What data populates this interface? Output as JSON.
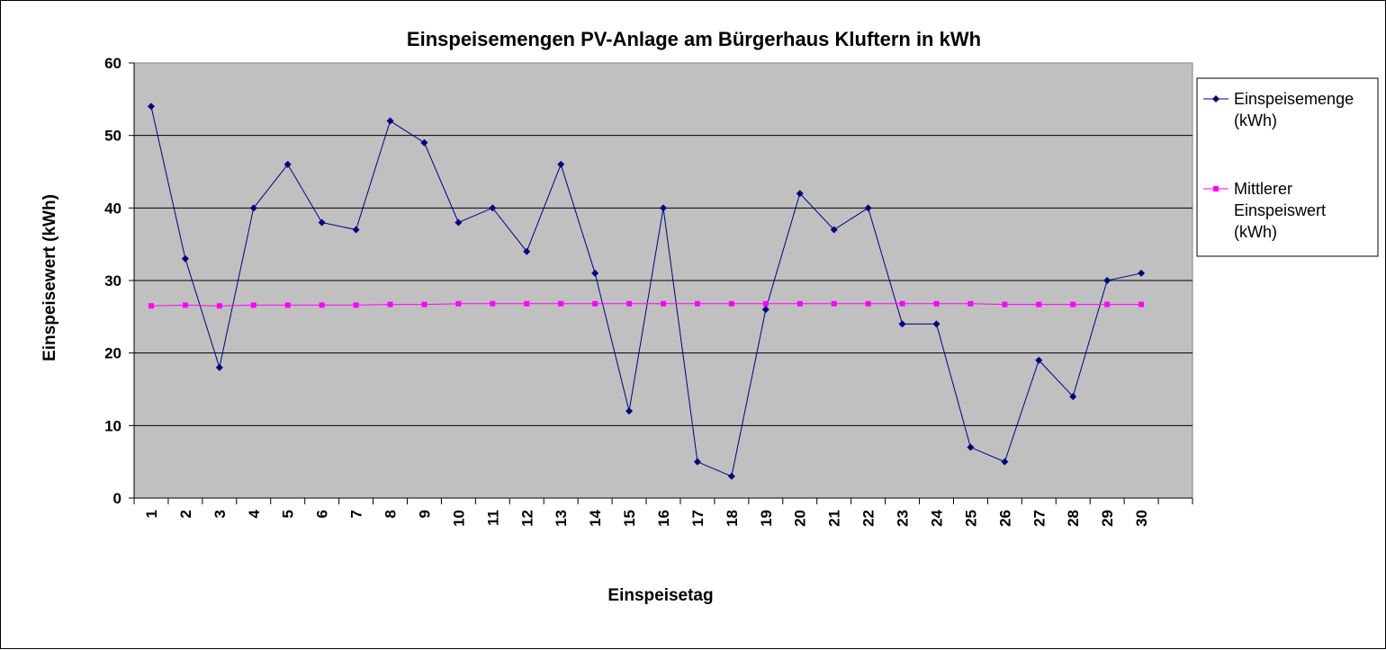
{
  "chart_data": {
    "type": "line",
    "title": "Einspeisemengen PV-Anlage am Bürgerhaus Kluftern in kWh",
    "xlabel": "Einspeisetag",
    "ylabel": "Einspeisewert (kWh)",
    "ylim": [
      0,
      60
    ],
    "yticks": [
      0,
      10,
      20,
      30,
      40,
      50,
      60
    ],
    "grid": "horizontal",
    "legend_position": "right",
    "categories": [
      "1",
      "2",
      "3",
      "4",
      "5",
      "6",
      "7",
      "8",
      "9",
      "10",
      "11",
      "12",
      "13",
      "14",
      "15",
      "16",
      "17",
      "18",
      "19",
      "20",
      "21",
      "22",
      "23",
      "24",
      "25",
      "26",
      "27",
      "28",
      "29",
      "30"
    ],
    "series": [
      {
        "name_lines": [
          "Einspeisemenge",
          "(kWh)"
        ],
        "color": "#000080",
        "marker": "diamond",
        "values": [
          54,
          33,
          18,
          40,
          46,
          38,
          37,
          52,
          49,
          38,
          40,
          34,
          46,
          31,
          12,
          40,
          5,
          3,
          26,
          42,
          37,
          40,
          24,
          24,
          7,
          5,
          19,
          14,
          30,
          31
        ]
      },
      {
        "name_lines": [
          "Mittlerer",
          "Einspeiswert",
          "(kWh)"
        ],
        "color": "#ff00ff",
        "marker": "square",
        "values": [
          26.5,
          26.6,
          26.5,
          26.6,
          26.6,
          26.6,
          26.6,
          26.7,
          26.7,
          26.8,
          26.8,
          26.8,
          26.8,
          26.8,
          26.8,
          26.8,
          26.8,
          26.8,
          26.8,
          26.8,
          26.8,
          26.8,
          26.8,
          26.8,
          26.8,
          26.7,
          26.7,
          26.7,
          26.7,
          26.7
        ]
      }
    ],
    "plot_background": "#c0c0c0"
  }
}
